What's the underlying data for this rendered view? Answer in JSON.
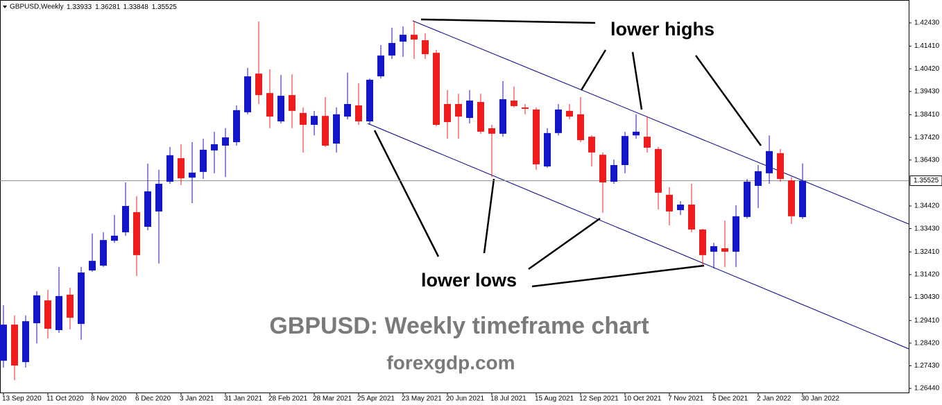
{
  "chart_data": {
    "type": "candlestick",
    "title": "GBPUSD,Weekly",
    "last_bar": [
      1.33933,
      1.36281,
      1.33848,
      1.35525
    ],
    "current_price": 1.35525,
    "annotations": [
      "lower highs",
      "lower lows",
      "GBPUSD: Weekly timeframe chart",
      "forexgdp.com"
    ],
    "up_color": "#1414c8",
    "down_color": "#ee1c1c",
    "categories": [
      "13 Sep 2020",
      null,
      null,
      null,
      "11 Oct 2020",
      null,
      null,
      null,
      "8 Nov 2020",
      null,
      null,
      null,
      "6 Dec 2020",
      null,
      null,
      null,
      "3 Jan 2021",
      null,
      null,
      null,
      "31 Jan 2021",
      null,
      null,
      null,
      "28 Feb 2021",
      null,
      null,
      null,
      "28 Mar 2021",
      null,
      null,
      null,
      "25 Apr 2021",
      null,
      null,
      null,
      "23 May 2021",
      null,
      null,
      null,
      "20 Jun 2021",
      null,
      null,
      null,
      "18 Jul 2021",
      null,
      null,
      null,
      "15 Aug 2021",
      null,
      null,
      null,
      "12 Sep 2021",
      null,
      null,
      null,
      "10 Oct 2021",
      null,
      null,
      null,
      "7 Nov 2021",
      null,
      null,
      null,
      "5 Dec 2021",
      null,
      null,
      null,
      "2 Jan 2022",
      null,
      null,
      null,
      "30 Jan 2022"
    ],
    "open": [
      1.2765,
      1.2923,
      1.2759,
      1.2929,
      1.3029,
      1.2899,
      1.3054,
      1.2926,
      1.316,
      1.3181,
      1.329,
      1.3327,
      1.3415,
      1.3351,
      1.3418,
      1.3548,
      1.3651,
      1.3566,
      1.3591,
      1.3685,
      1.3706,
      1.3721,
      1.3852,
      1.4021,
      1.3936,
      1.3812,
      1.3927,
      1.3849,
      1.3797,
      1.3836,
      1.3715,
      1.3833,
      1.3882,
      1.3812,
      1.4009,
      1.41,
      1.4161,
      1.4191,
      1.4167,
      1.4112,
      1.3888,
      1.3888,
      1.3827,
      1.3897,
      1.3782,
      1.3758,
      1.3903,
      1.3873,
      1.3864,
      1.3615,
      1.3761,
      1.3858,
      1.3843,
      1.3745,
      1.3666,
      1.3548,
      1.3621,
      1.3751,
      1.3745,
      1.3691,
      1.3491,
      1.3424,
      1.3448,
      1.3339,
      1.3242,
      1.3257,
      1.3242,
      1.3394,
      1.353,
      1.3585,
      1.3673,
      1.3554,
      1.33933
    ],
    "high": [
      1.3008,
      1.2963,
      1.2963,
      1.3069,
      1.3075,
      1.3175,
      1.3084,
      1.3175,
      1.3321,
      1.3327,
      1.3403,
      1.3545,
      1.3485,
      1.3627,
      1.36,
      1.37,
      1.3712,
      1.3721,
      1.3736,
      1.3767,
      1.3782,
      1.3882,
      1.4046,
      1.4249,
      1.404,
      1.4015,
      1.4018,
      1.3873,
      1.3858,
      1.3918,
      1.3873,
      1.4025,
      1.3979,
      1.4,
      1.4146,
      1.4222,
      1.4228,
      1.4252,
      1.4197,
      1.4125,
      1.3949,
      1.3933,
      1.3949,
      1.3933,
      1.3797,
      1.3988,
      1.3964,
      1.3888,
      1.3873,
      1.3782,
      1.3888,
      1.3888,
      1.3918,
      1.3751,
      1.3676,
      1.3645,
      1.3767,
      1.3843,
      1.3833,
      1.37,
      1.3524,
      1.3463,
      1.3539,
      1.3342,
      1.3281,
      1.3378,
      1.3445,
      1.356,
      1.3621,
      1.3751,
      1.3691,
      1.3569,
      1.36281
    ],
    "low": [
      1.2735,
      1.268,
      1.2735,
      1.2841,
      1.2862,
      1.2887,
      1.2902,
      1.2856,
      1.3154,
      1.3175,
      1.3281,
      1.3312,
      1.3136,
      1.3336,
      1.319,
      1.3539,
      1.3533,
      1.3454,
      1.356,
      1.3585,
      1.3569,
      1.3706,
      1.3843,
      1.3888,
      1.3782,
      1.3803,
      1.3782,
      1.3676,
      1.3751,
      1.37,
      1.3676,
      1.3821,
      1.3797,
      1.3797,
      1.4,
      1.4085,
      1.4094,
      1.4085,
      1.4085,
      1.3791,
      1.3736,
      1.3736,
      1.3803,
      1.3758,
      1.3569,
      1.3745,
      1.3873,
      1.3843,
      1.36,
      1.3609,
      1.3751,
      1.3821,
      1.3721,
      1.3615,
      1.3412,
      1.3539,
      1.3585,
      1.3736,
      1.3676,
      1.3427,
      1.3357,
      1.3403,
      1.3327,
      1.3181,
      1.3169,
      1.3175,
      1.3175,
      1.3387,
      1.3433,
      1.3539,
      1.3548,
      1.3363,
      1.33848
    ],
    "close": [
      1.2923,
      1.2744,
      1.2938,
      1.3051,
      1.2905,
      1.3048,
      1.2953,
      1.3151,
      1.3202,
      1.3293,
      1.3312,
      1.3442,
      1.3227,
      1.3506,
      1.3539,
      1.3664,
      1.3563,
      1.3588,
      1.3688,
      1.3712,
      1.3742,
      1.3861,
      1.4009,
      1.3927,
      1.3833,
      1.3924,
      1.3858,
      1.3797,
      1.3836,
      1.3706,
      1.3843,
      1.3888,
      1.3812,
      1.3994,
      1.41,
      1.4155,
      1.4191,
      1.417,
      1.4106,
      1.3797,
      1.3809,
      1.3833,
      1.3903,
      1.3767,
      1.3758,
      1.3909,
      1.3879,
      1.3867,
      1.3624,
      1.3761,
      1.3864,
      1.3833,
      1.373,
      1.3676,
      1.3545,
      1.3621,
      1.3748,
      1.3767,
      1.3697,
      1.35,
      1.3418,
      1.3448,
      1.3339,
      1.3227,
      1.3266,
      1.3242,
      1.3397,
      1.3548,
      1.3594,
      1.3682,
      1.356,
      1.3397,
      1.35525
    ],
    "ylim": [
      1.2626,
      1.4343
    ],
    "yticks": [
      {
        "value": 1.4243,
        "label": "1.42430"
      },
      {
        "value": 1.4141,
        "label": "1.41410"
      },
      {
        "value": 1.4042,
        "label": "1.40420"
      },
      {
        "value": 1.3943,
        "label": "1.39430"
      },
      {
        "value": 1.3841,
        "label": "1.38410"
      },
      {
        "value": 1.3742,
        "label": "1.37420"
      },
      {
        "value": 1.3643,
        "label": "1.36430"
      },
      {
        "value": 1.3442,
        "label": "1.34420"
      },
      {
        "value": 1.3343,
        "label": "1.33430"
      },
      {
        "value": 1.3241,
        "label": "1.32410"
      },
      {
        "value": 1.3142,
        "label": "1.31420"
      },
      {
        "value": 1.3043,
        "label": "1.30430"
      },
      {
        "value": 1.2941,
        "label": "1.29410"
      },
      {
        "value": 1.2842,
        "label": "1.28420"
      },
      {
        "value": 1.2743,
        "label": "1.27430"
      },
      {
        "value": 1.2644,
        "label": "1.26440"
      }
    ]
  }
}
